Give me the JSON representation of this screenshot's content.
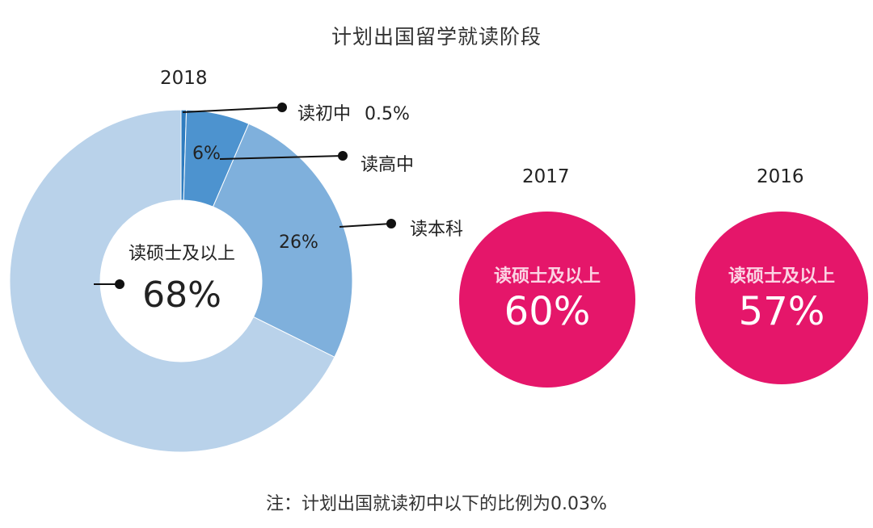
{
  "title": "计划出国留学就读阶段",
  "note": "注：计划出国就读初中以下的比例为0.03%",
  "colors": {
    "donut_master": "#B9D2EA",
    "donut_bachelor": "#7FB0DC",
    "donut_highschool": "#4D93CF",
    "donut_junior": "#2F7CBF",
    "bubble": "#E5166A"
  },
  "chart_data": [
    {
      "type": "pie",
      "variant": "donut",
      "year_label": "2018",
      "slices": [
        {
          "label": "读初中",
          "value": 0.5,
          "value_label": "0.5%"
        },
        {
          "label": "读高中",
          "value": 6,
          "value_label": "6%"
        },
        {
          "label": "读本科",
          "value": 26,
          "value_label": "26%"
        },
        {
          "label": "读硕士及以上",
          "value": 68,
          "value_label": "68%"
        }
      ]
    },
    {
      "type": "bubble",
      "year_label": "2017",
      "label": "读硕士及以上",
      "value": 60,
      "value_label": "60%"
    },
    {
      "type": "bubble",
      "year_label": "2016",
      "label": "读硕士及以上",
      "value": 57,
      "value_label": "57%"
    }
  ]
}
